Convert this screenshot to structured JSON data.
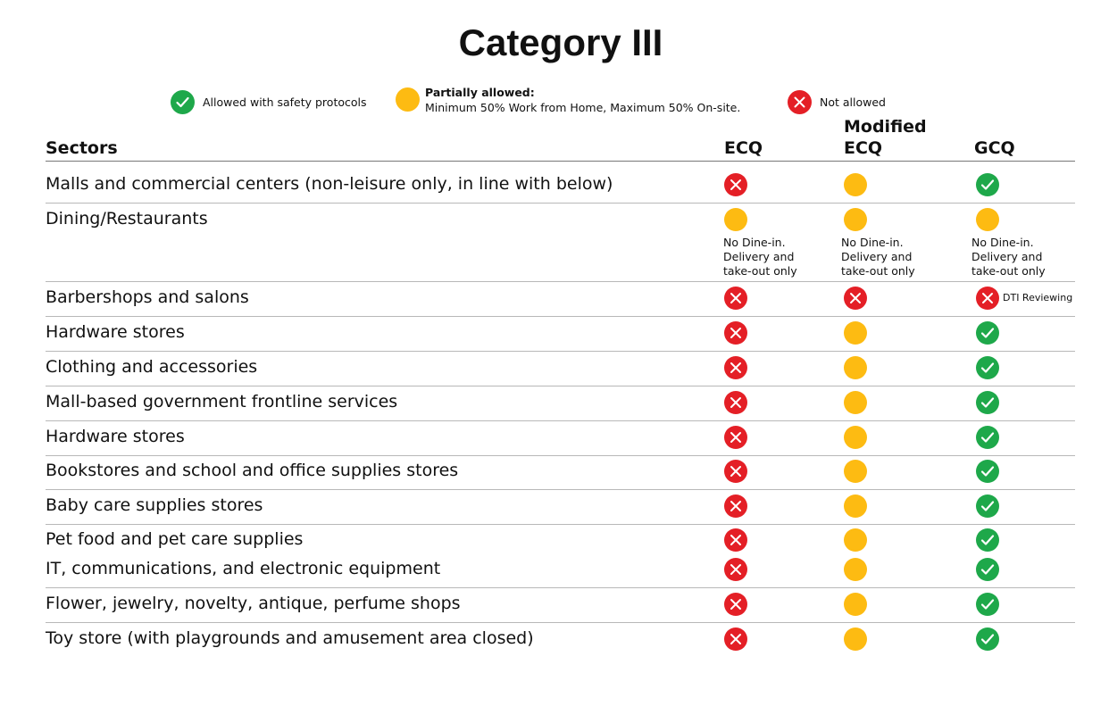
{
  "title": "Category III",
  "legend": {
    "allowed": "Allowed with safety protocols",
    "partial_bold": "Partially allowed:",
    "partial_detail": "Minimum 50% Work from Home,  Maximum 50% On-site.",
    "not_allowed": "Not allowed"
  },
  "header": {
    "sectors": "Sectors",
    "ecq": "ECQ",
    "mecq_line1": "Modified",
    "mecq_line2": "ECQ",
    "gcq": "GCQ"
  },
  "rows": [
    {
      "sector": "Malls and commercial centers (non-leisure only, in line with below)",
      "ecq": "not-allowed",
      "mecq": "partial",
      "gcq": "allowed"
    },
    {
      "sector": "Dining/Restaurants",
      "ecq": "partial",
      "mecq": "partial",
      "gcq": "partial",
      "notes": {
        "ecq": "No Dine-in.\nDelivery and\ntake-out only",
        "mecq": "No Dine-in.\nDelivery and\ntake-out only",
        "gcq": "No Dine-in.\nDelivery and\ntake-out only"
      }
    },
    {
      "sector": "Barbershops and salons",
      "ecq": "not-allowed",
      "mecq": "not-allowed",
      "gcq": "not-allowed",
      "gcq_note": "DTI Reviewing"
    },
    {
      "sector": "Hardware stores",
      "ecq": "not-allowed",
      "mecq": "partial",
      "gcq": "allowed"
    },
    {
      "sector": "Clothing and accessories",
      "ecq": "not-allowed",
      "mecq": "partial",
      "gcq": "allowed"
    },
    {
      "sector": "Mall-based government frontline services",
      "ecq": "not-allowed",
      "mecq": "partial",
      "gcq": "allowed"
    },
    {
      "sector": "Hardware stores",
      "ecq": "not-allowed",
      "mecq": "partial",
      "gcq": "allowed"
    },
    {
      "sector": "Bookstores and school and office supplies stores",
      "ecq": "not-allowed",
      "mecq": "partial",
      "gcq": "allowed"
    },
    {
      "sector": "Baby care supplies stores",
      "ecq": "not-allowed",
      "mecq": "partial",
      "gcq": "allowed"
    },
    {
      "sector": "Pet food and pet care supplies",
      "ecq": "not-allowed",
      "mecq": "partial",
      "gcq": "allowed"
    },
    {
      "sector": "IT, communications, and electronic equipment",
      "ecq": "not-allowed",
      "mecq": "partial",
      "gcq": "allowed"
    },
    {
      "sector": "Flower, jewelry, novelty, antique, perfume shops",
      "ecq": "not-allowed",
      "mecq": "partial",
      "gcq": "allowed"
    },
    {
      "sector": "Toy store (with playgrounds and amusement area closed)",
      "ecq": "not-allowed",
      "mecq": "partial",
      "gcq": "allowed"
    }
  ],
  "colors": {
    "allowed": "#1ea84a",
    "partial": "#fdbb12",
    "not_allowed": "#e41f26"
  },
  "icons": {
    "allowed": "check-circle-icon",
    "partial": "yellow-circle-icon",
    "not_allowed": "x-circle-icon"
  }
}
